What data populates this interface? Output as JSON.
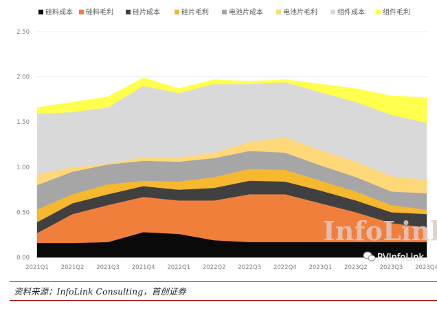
{
  "chart_data": {
    "type": "area",
    "stacked": true,
    "title": "",
    "xlabel": "",
    "ylabel": "",
    "ylim": [
      0,
      2.5
    ],
    "y_ticks": [
      "0.00",
      "0.50",
      "1.00",
      "1.50",
      "2.00",
      "2.50"
    ],
    "grid": true,
    "legend_position": "top",
    "categories": [
      "2021Q1",
      "2021Q2",
      "2021Q3",
      "2021Q4",
      "2022Q1",
      "2022Q2",
      "2022Q3",
      "2022Q4",
      "2023Q1",
      "2023Q2",
      "2023Q3",
      "2023Q4"
    ],
    "series": [
      {
        "name": "硅料成本",
        "color": "#0a0a0a",
        "values": [
          0.16,
          0.16,
          0.17,
          0.28,
          0.26,
          0.19,
          0.17,
          0.17,
          0.17,
          0.17,
          0.17,
          0.17
        ]
      },
      {
        "name": "硅料毛利",
        "color": "#f07f3c",
        "values": [
          0.11,
          0.32,
          0.41,
          0.39,
          0.37,
          0.44,
          0.53,
          0.53,
          0.43,
          0.33,
          0.21,
          0.16
        ]
      },
      {
        "name": "硅片成本",
        "color": "#404040",
        "values": [
          0.12,
          0.12,
          0.12,
          0.12,
          0.12,
          0.14,
          0.15,
          0.14,
          0.14,
          0.13,
          0.12,
          0.15
        ]
      },
      {
        "name": "硅片毛利",
        "color": "#f5b82e",
        "values": [
          0.14,
          0.1,
          0.11,
          0.06,
          0.09,
          0.12,
          0.13,
          0.13,
          0.11,
          0.1,
          0.08,
          0.05
        ]
      },
      {
        "name": "电池片成本",
        "color": "#a6a6a6",
        "values": [
          0.27,
          0.25,
          0.22,
          0.22,
          0.22,
          0.21,
          0.2,
          0.19,
          0.17,
          0.16,
          0.15,
          0.18
        ]
      },
      {
        "name": "电池片毛利",
        "color": "#ffd87a",
        "values": [
          0.12,
          0.05,
          0.01,
          0.04,
          0.05,
          0.06,
          0.1,
          0.17,
          0.17,
          0.17,
          0.17,
          0.15
        ]
      },
      {
        "name": "组件成本",
        "color": "#d9d9d9",
        "values": [
          0.67,
          0.61,
          0.62,
          0.79,
          0.71,
          0.76,
          0.64,
          0.61,
          0.64,
          0.66,
          0.68,
          0.63
        ]
      },
      {
        "name": "组件毛利",
        "color": "#ffff4d",
        "values": [
          0.07,
          0.11,
          0.12,
          0.09,
          0.05,
          0.05,
          0.03,
          0.03,
          0.09,
          0.15,
          0.21,
          0.28
        ]
      }
    ],
    "watermark": "InfoLink",
    "brand_mark": "PVInfoLink"
  },
  "source": "资料来源：InfoLink Consulting，首创证券"
}
